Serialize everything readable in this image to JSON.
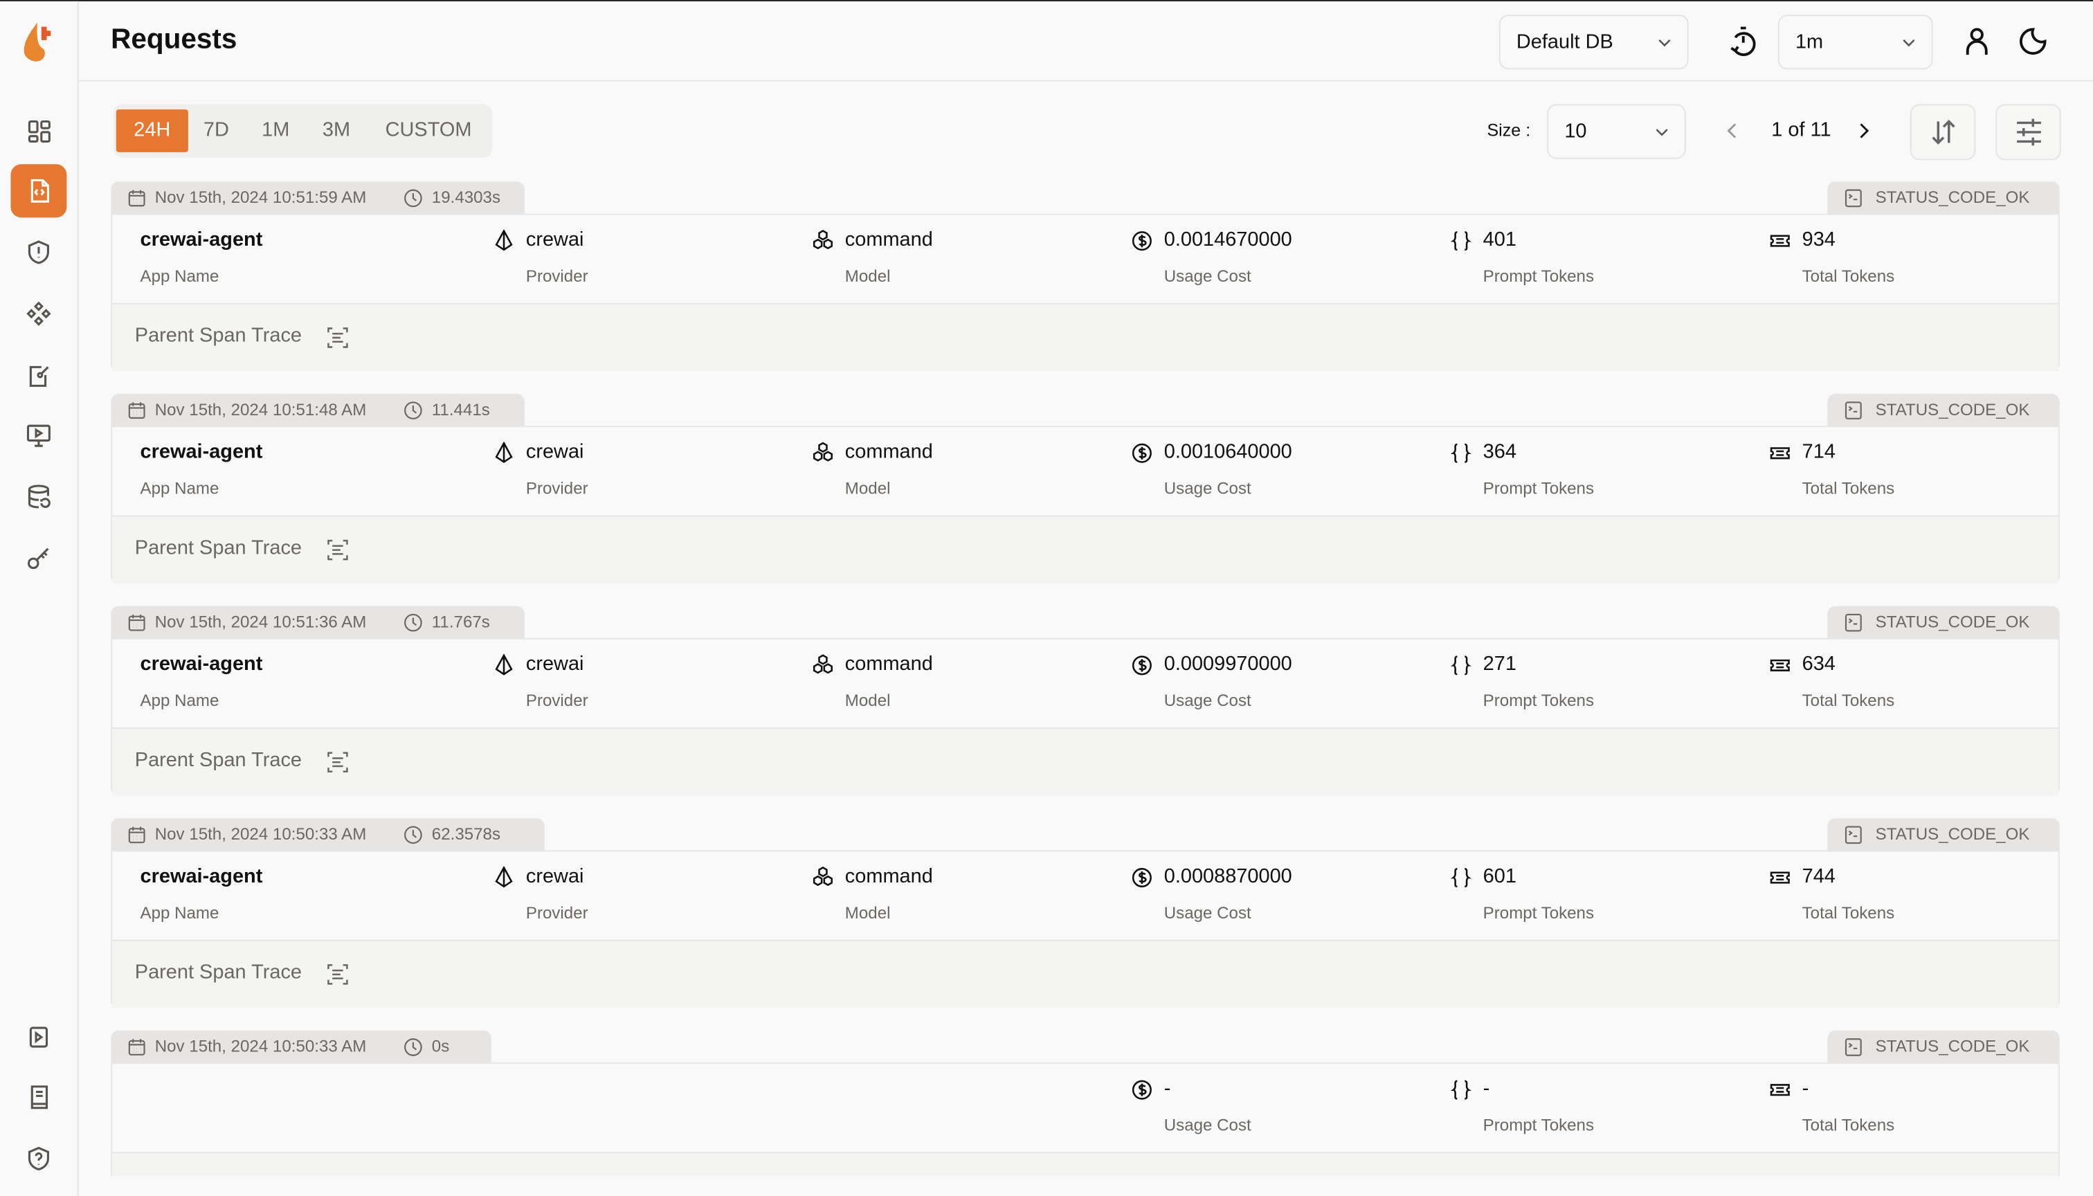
{
  "app": {
    "brand_color": "#e57730"
  },
  "sidebar": {
    "items": [
      {
        "icon": "dashboard-icon"
      },
      {
        "icon": "requests-icon",
        "active": true
      },
      {
        "icon": "shield-alert-icon"
      },
      {
        "icon": "components-icon"
      },
      {
        "icon": "prompt-edit-icon"
      },
      {
        "icon": "monitor-play-icon"
      },
      {
        "icon": "database-icon"
      },
      {
        "icon": "key-icon"
      }
    ],
    "bottom": [
      {
        "icon": "play-square-icon"
      },
      {
        "icon": "book-icon"
      },
      {
        "icon": "shield-question-icon"
      }
    ]
  },
  "header": {
    "title": "Requests",
    "db_select": "Default DB",
    "refresh_select": "1m"
  },
  "filters": {
    "tabs": [
      "24H",
      "7D",
      "1M",
      "3M",
      "CUSTOM"
    ],
    "active_tab": "24H",
    "size_label": "Size :",
    "size_value": "10",
    "page_text": "1 of 11"
  },
  "labels": {
    "app_name": "App Name",
    "provider": "Provider",
    "model": "Model",
    "usage_cost": "Usage Cost",
    "prompt_tokens": "Prompt Tokens",
    "total_tokens": "Total Tokens",
    "parent_span_trace": "Parent Span Trace"
  },
  "requests": [
    {
      "timestamp": "Nov 15th, 2024 10:51:59 AM",
      "duration": "19.4303s",
      "status": "STATUS_CODE_OK",
      "app_name": "crewai-agent",
      "provider": "crewai",
      "model": "command",
      "usage_cost": "0.0014670000",
      "prompt_tokens": "401",
      "total_tokens": "934"
    },
    {
      "timestamp": "Nov 15th, 2024 10:51:48 AM",
      "duration": "11.441s",
      "status": "STATUS_CODE_OK",
      "app_name": "crewai-agent",
      "provider": "crewai",
      "model": "command",
      "usage_cost": "0.0010640000",
      "prompt_tokens": "364",
      "total_tokens": "714"
    },
    {
      "timestamp": "Nov 15th, 2024 10:51:36 AM",
      "duration": "11.767s",
      "status": "STATUS_CODE_OK",
      "app_name": "crewai-agent",
      "provider": "crewai",
      "model": "command",
      "usage_cost": "0.0009970000",
      "prompt_tokens": "271",
      "total_tokens": "634"
    },
    {
      "timestamp": "Nov 15th, 2024 10:50:33 AM",
      "duration": "62.3578s",
      "status": "STATUS_CODE_OK",
      "app_name": "crewai-agent",
      "provider": "crewai",
      "model": "command",
      "usage_cost": "0.0008870000",
      "prompt_tokens": "601",
      "total_tokens": "744"
    },
    {
      "timestamp": "Nov 15th, 2024 10:50:33 AM",
      "duration": "0s",
      "status": "STATUS_CODE_OK",
      "app_name": "",
      "provider": "",
      "model": "",
      "usage_cost": "-",
      "prompt_tokens": "-",
      "total_tokens": "-"
    }
  ]
}
